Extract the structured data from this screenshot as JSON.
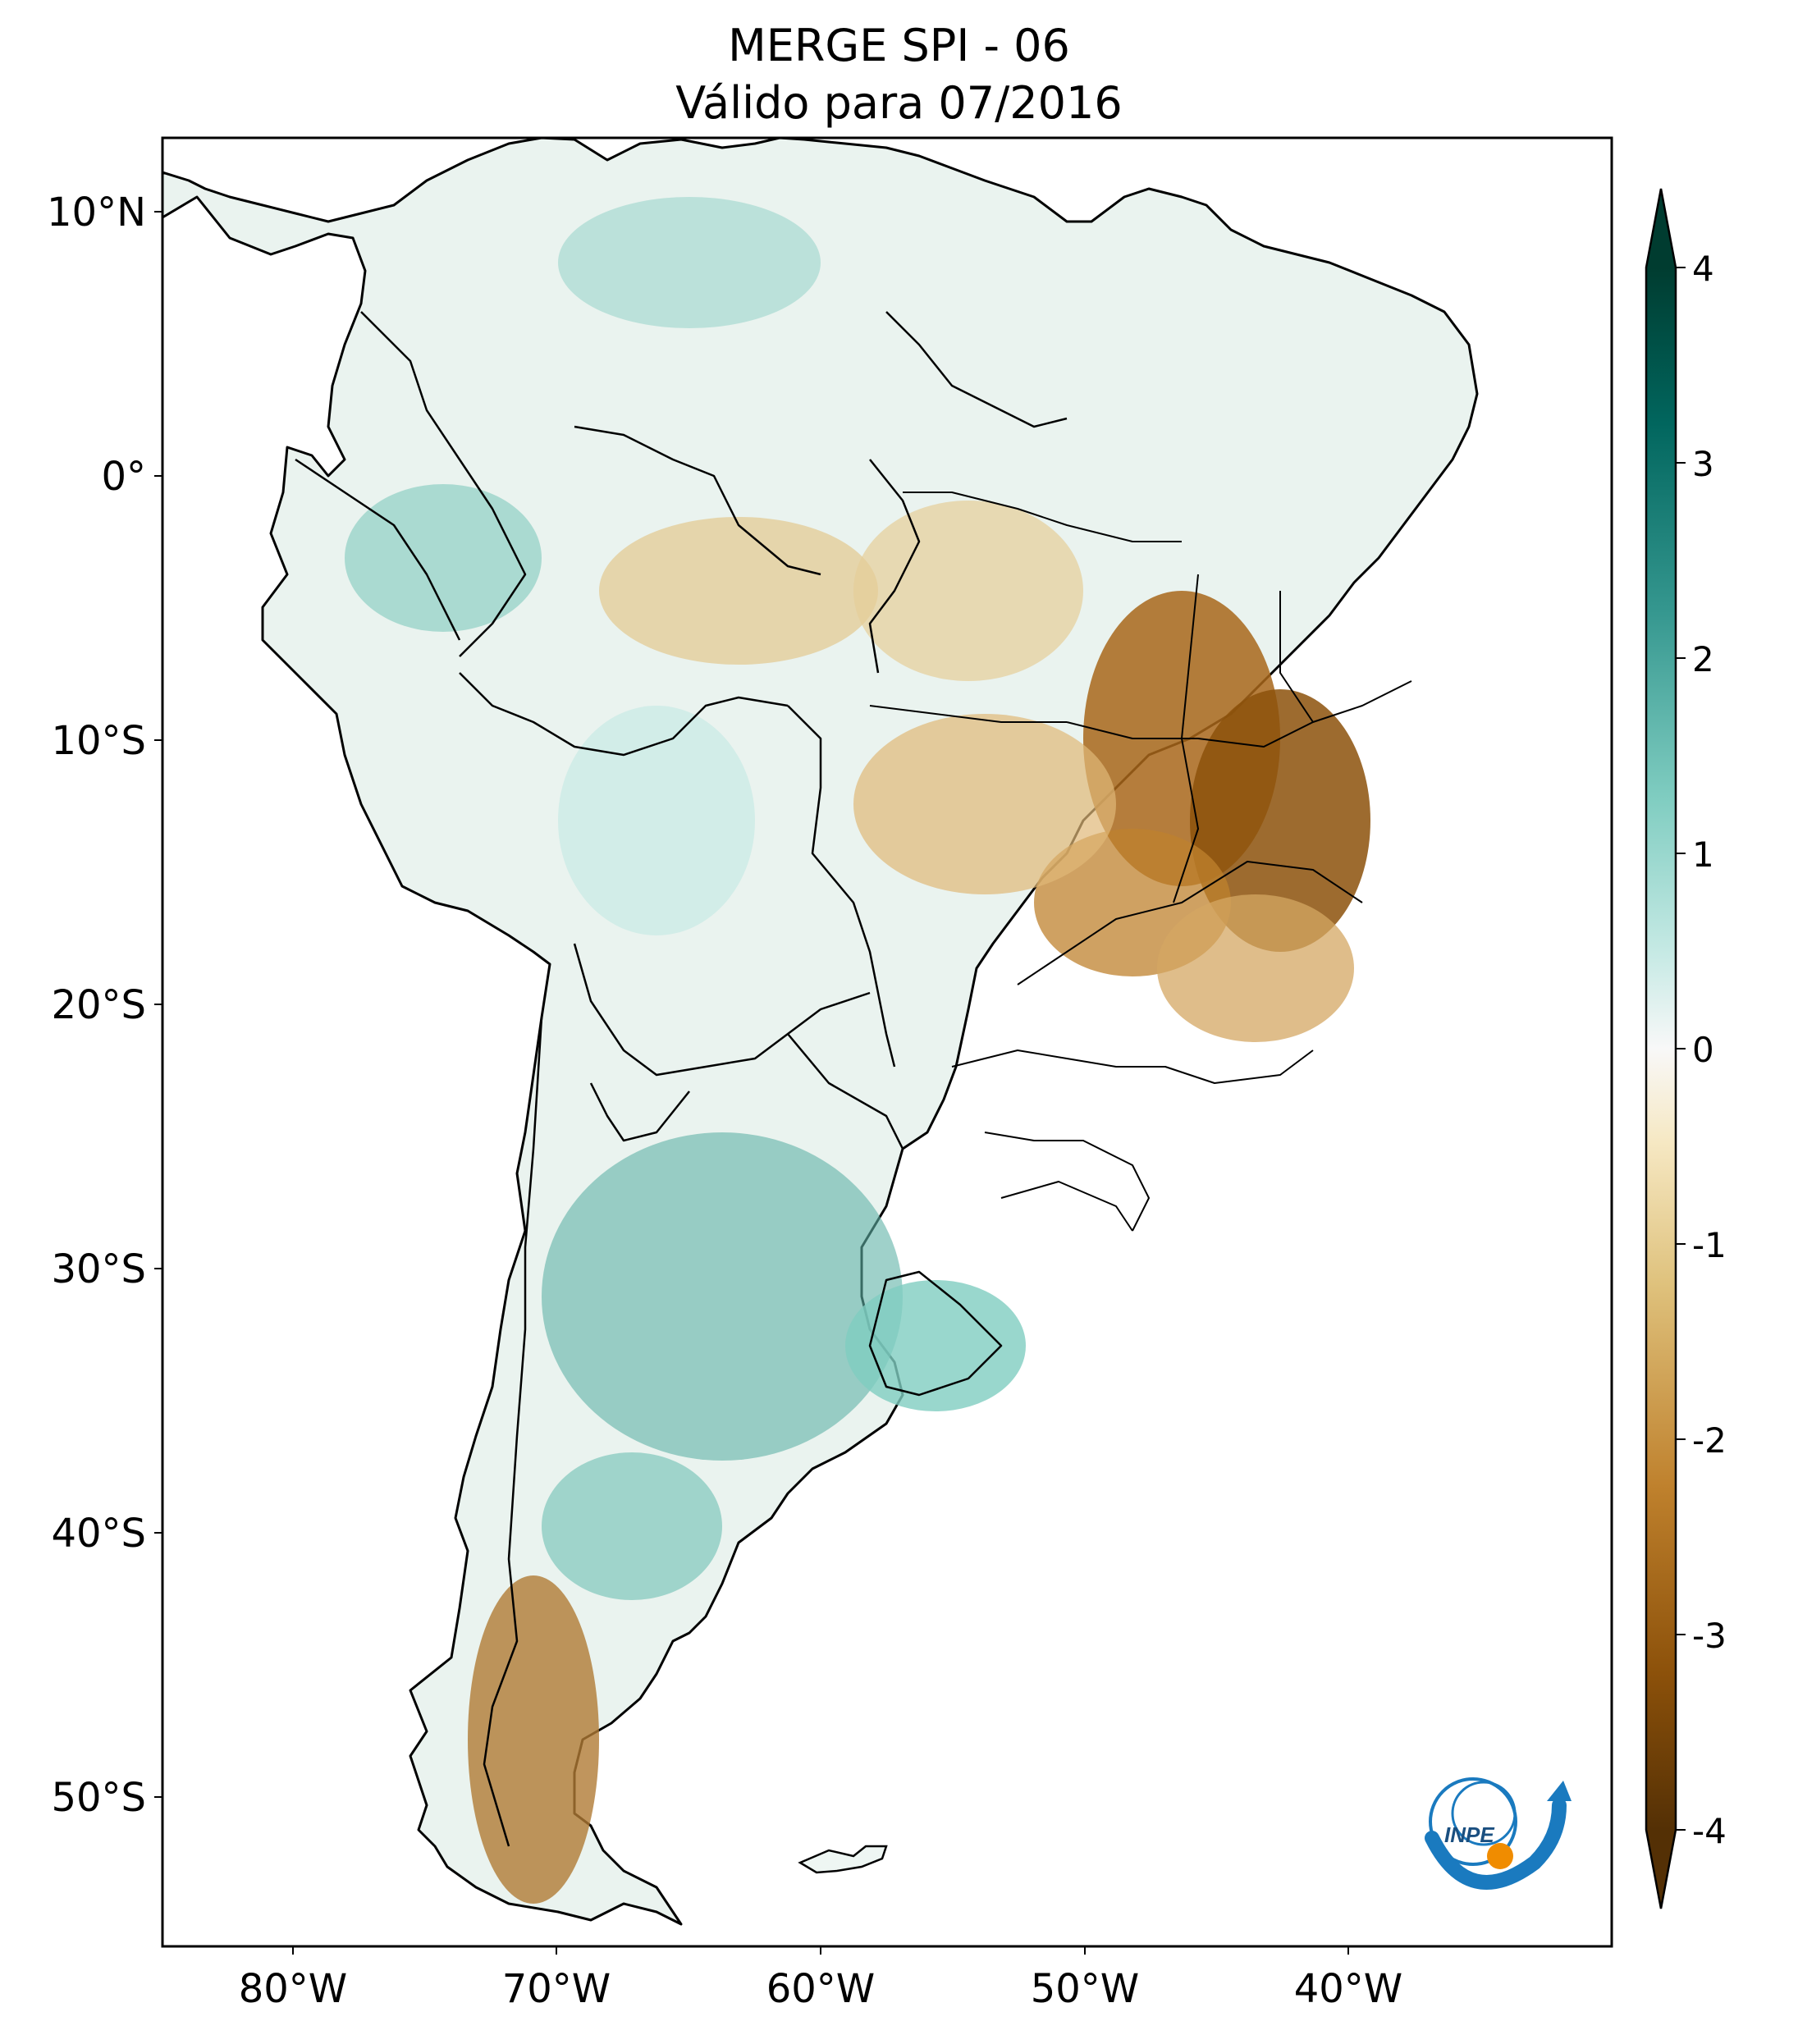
{
  "title": {
    "line1": "MERGE   SPI - 06",
    "line2": "Válido para 07/2016"
  },
  "axes": {
    "lat_labels": [
      "10°N",
      "0°",
      "10°S",
      "20°S",
      "30°S",
      "40°S",
      "50°S"
    ],
    "lon_labels": [
      "80°W",
      "70°W",
      "60°W",
      "50°W",
      "40°W"
    ]
  },
  "colorbar": {
    "ticks": [
      "4",
      "3",
      "2",
      "1",
      "0",
      "-1",
      "-2",
      "-3",
      "-4"
    ],
    "colors": [
      "#003c30",
      "#01665e",
      "#35978f",
      "#80cdc1",
      "#c7eae5",
      "#f5f5f5",
      "#f6e8c3",
      "#dfc27d",
      "#bf812d",
      "#8c510a",
      "#543005"
    ]
  },
  "logo": {
    "text": "INPE",
    "colors": [
      "#1a7abf",
      "#f08c00"
    ]
  }
}
